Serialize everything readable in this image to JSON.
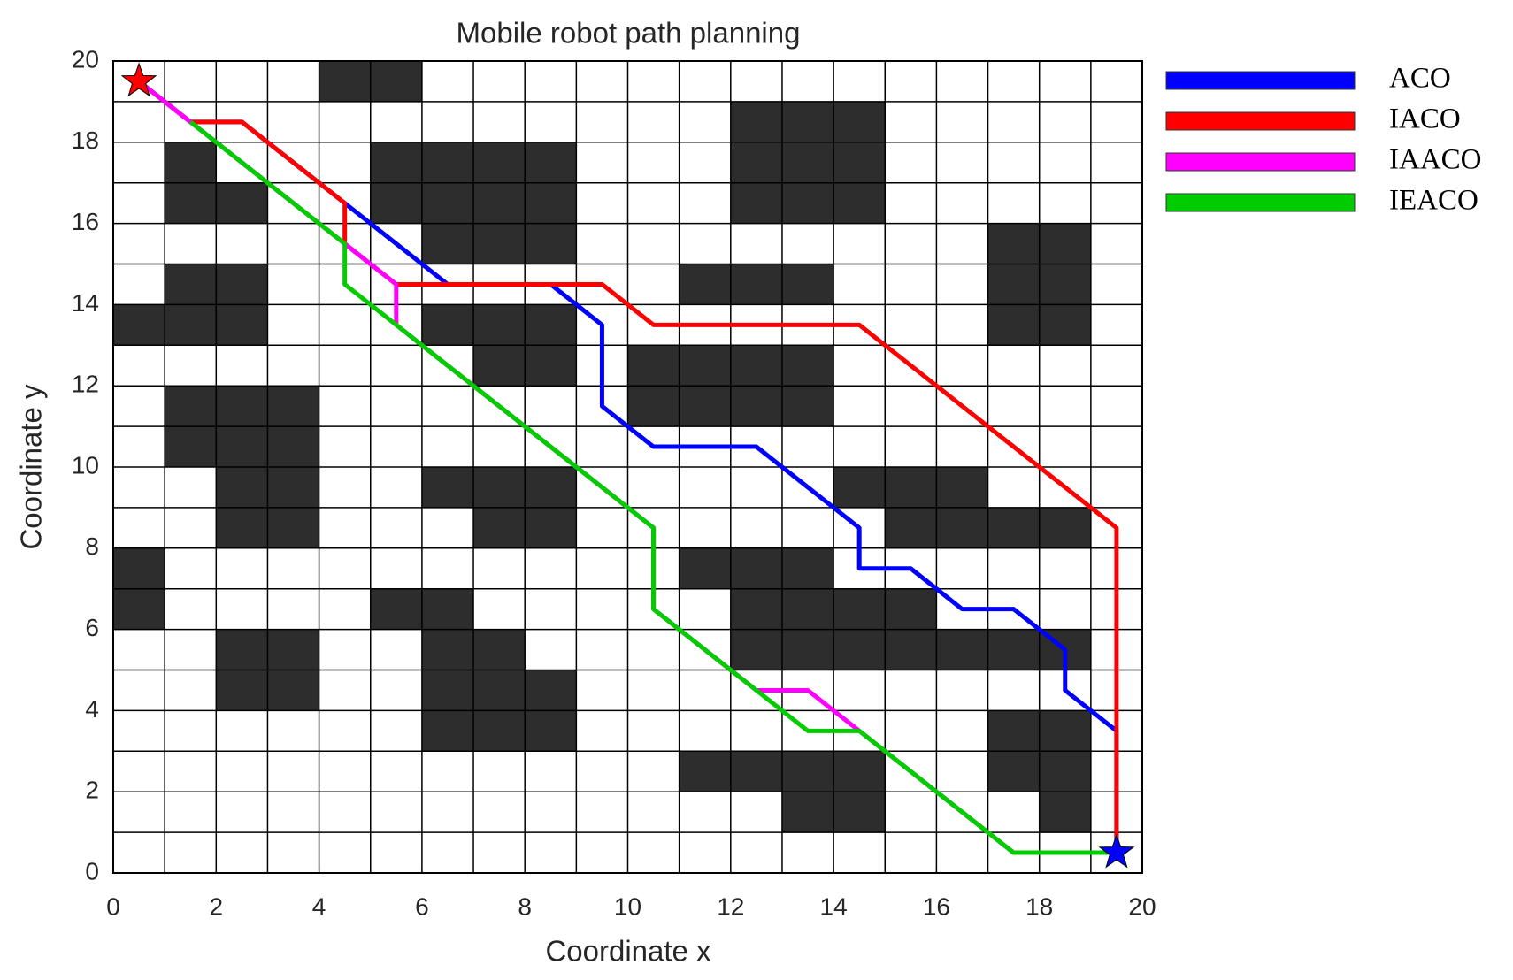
{
  "chart_data": {
    "type": "path-planning",
    "title": "Mobile robot path planning",
    "x_label": "Coordinate x",
    "y_label": "Coordinate y",
    "xlim": [
      0,
      20
    ],
    "ylim": [
      0,
      20
    ],
    "xticks": [
      0,
      2,
      4,
      6,
      8,
      10,
      12,
      14,
      16,
      18,
      20
    ],
    "yticks": [
      0,
      2,
      4,
      6,
      8,
      10,
      12,
      14,
      16,
      18,
      20
    ],
    "grid": true,
    "grid_step": 1,
    "obstacle_color": "#2d2d2d",
    "legend": "right",
    "obstacles": [
      [
        4,
        6,
        19
      ],
      [
        12,
        15,
        18
      ],
      [
        1,
        2,
        17
      ],
      [
        5,
        9,
        17
      ],
      [
        12,
        15,
        17
      ],
      [
        1,
        3,
        16
      ],
      [
        5,
        9,
        16
      ],
      [
        12,
        15,
        16
      ],
      [
        6,
        9,
        15
      ],
      [
        17,
        19,
        15
      ],
      [
        1,
        3,
        14
      ],
      [
        11,
        14,
        14
      ],
      [
        17,
        19,
        14
      ],
      [
        0,
        3,
        13
      ],
      [
        6,
        9,
        13
      ],
      [
        17,
        19,
        13
      ],
      [
        7,
        9,
        12
      ],
      [
        10,
        14,
        12
      ],
      [
        1,
        4,
        11
      ],
      [
        10,
        14,
        11
      ],
      [
        1,
        4,
        10
      ],
      [
        2,
        4,
        9
      ],
      [
        6,
        9,
        9
      ],
      [
        14,
        17,
        9
      ],
      [
        2,
        4,
        8
      ],
      [
        7,
        9,
        8
      ],
      [
        15,
        19,
        8
      ],
      [
        0,
        1,
        7
      ],
      [
        11,
        14,
        7
      ],
      [
        0,
        1,
        6
      ],
      [
        5,
        7,
        6
      ],
      [
        12,
        16,
        6
      ],
      [
        2,
        4,
        5
      ],
      [
        6,
        8,
        5
      ],
      [
        12,
        19,
        5
      ],
      [
        2,
        4,
        4
      ],
      [
        6,
        9,
        4
      ],
      [
        6,
        9,
        3
      ],
      [
        17,
        19,
        3
      ],
      [
        11,
        15,
        2
      ],
      [
        17,
        19,
        2
      ],
      [
        13,
        15,
        1
      ],
      [
        18,
        19,
        1
      ]
    ],
    "series": [
      {
        "name": "ACO",
        "color": "#0000ff",
        "x": [
          0.5,
          1.5,
          2.5,
          4.5,
          6.5,
          8.5,
          9.5,
          9.5,
          10.5,
          12.5,
          14.5,
          14.5,
          15.5,
          16.5,
          17.5,
          18.5,
          18.5,
          19.5,
          19.5
        ],
        "y": [
          19.5,
          18.5,
          18.5,
          16.5,
          14.5,
          14.5,
          13.5,
          11.5,
          10.5,
          10.5,
          8.5,
          7.5,
          7.5,
          6.5,
          6.5,
          5.5,
          4.5,
          3.5,
          0.5
        ]
      },
      {
        "name": "IACO",
        "color": "#ff0000",
        "x": [
          0.5,
          1.5,
          2.5,
          4.5,
          4.5,
          5.5,
          9.5,
          10.5,
          14.5,
          19.5,
          19.5
        ],
        "y": [
          19.5,
          18.5,
          18.5,
          16.5,
          15.5,
          14.5,
          14.5,
          13.5,
          13.5,
          8.5,
          0.5
        ]
      },
      {
        "name": "IAACO",
        "color": "#ff00ff",
        "x": [
          0.5,
          1.5,
          4.5,
          5.5,
          5.5,
          10.5,
          10.5,
          12.5,
          13.5,
          14.5,
          17.5,
          19.5
        ],
        "y": [
          19.5,
          18.5,
          15.5,
          14.5,
          13.5,
          8.5,
          6.5,
          4.5,
          4.5,
          3.5,
          0.5,
          0.5
        ]
      },
      {
        "name": "IEACO",
        "color": "#00cc00",
        "x": [
          1.5,
          4.5,
          4.5,
          5.5,
          10.5,
          10.5,
          12.5,
          13.5,
          14.5,
          17.5,
          19.5
        ],
        "y": [
          18.5,
          15.5,
          14.5,
          13.5,
          8.5,
          6.5,
          4.5,
          3.5,
          3.5,
          0.5,
          0.5
        ]
      }
    ],
    "markers": [
      {
        "x": 0.5,
        "y": 19.5,
        "color": "#ff0000"
      },
      {
        "x": 19.5,
        "y": 0.5,
        "color": "#0000ff"
      }
    ]
  }
}
